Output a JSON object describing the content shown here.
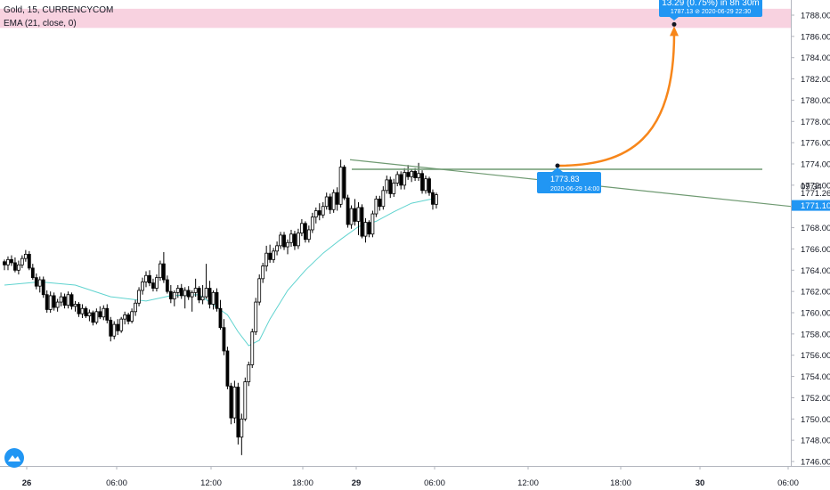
{
  "chart_data": {
    "type": "candlestick",
    "symbol_title": "Gold, 15, CURRENCYCOM",
    "indicator_label": "EMA (21, close, 0)",
    "x_ticks": [
      "26",
      "06:00",
      "12:00",
      "18:00",
      "29",
      "06:00",
      "12:00",
      "18:00",
      "30",
      "06:00"
    ],
    "y_ticks": [
      "1746.00",
      "1748.00",
      "1750.00",
      "1752.00",
      "1754.00",
      "1756.00",
      "1758.00",
      "1760.00",
      "1762.00",
      "1764.00",
      "1766.00",
      "1768.00",
      "1770.00",
      "1772.00",
      "1774.00",
      "1776.00",
      "1778.00",
      "1780.00",
      "1782.00",
      "1784.00",
      "1786.00",
      "1788.00"
    ],
    "ylim": [
      1745.0,
      1789.2
    ],
    "series": [
      {
        "name": "Gold",
        "candles": [
          [
            1764.8,
            1765.0,
            1764.0,
            1764.5
          ],
          [
            1764.5,
            1765.3,
            1764.0,
            1765.0
          ],
          [
            1765.0,
            1765.4,
            1764.4,
            1764.7
          ],
          [
            1764.7,
            1765.2,
            1763.8,
            1764.0
          ],
          [
            1764.0,
            1764.9,
            1763.6,
            1764.5
          ],
          [
            1764.5,
            1765.4,
            1764.2,
            1765.1
          ],
          [
            1765.1,
            1765.9,
            1764.8,
            1765.5
          ],
          [
            1765.5,
            1765.8,
            1764.0,
            1764.2
          ],
          [
            1764.2,
            1764.6,
            1763.1,
            1763.3
          ],
          [
            1763.3,
            1763.7,
            1762.2,
            1762.5
          ],
          [
            1762.5,
            1763.4,
            1761.9,
            1763.1
          ],
          [
            1763.1,
            1763.4,
            1761.4,
            1761.7
          ],
          [
            1761.7,
            1762.1,
            1760.0,
            1760.3
          ],
          [
            1760.3,
            1762.0,
            1760.0,
            1761.6
          ],
          [
            1761.6,
            1761.9,
            1760.2,
            1760.5
          ],
          [
            1760.5,
            1761.3,
            1760.1,
            1761.0
          ],
          [
            1761.0,
            1761.9,
            1760.6,
            1761.5
          ],
          [
            1761.5,
            1761.8,
            1760.4,
            1760.7
          ],
          [
            1760.7,
            1762.0,
            1760.4,
            1761.7
          ],
          [
            1761.7,
            1761.9,
            1760.3,
            1760.6
          ],
          [
            1760.6,
            1761.1,
            1760.1,
            1760.8
          ],
          [
            1760.8,
            1761.0,
            1759.6,
            1759.9
          ],
          [
            1759.9,
            1760.8,
            1759.5,
            1760.4
          ],
          [
            1760.4,
            1760.6,
            1759.5,
            1759.7
          ],
          [
            1759.7,
            1760.3,
            1759.2,
            1760.0
          ],
          [
            1760.0,
            1760.2,
            1758.8,
            1759.1
          ],
          [
            1759.1,
            1760.4,
            1758.9,
            1760.1
          ],
          [
            1760.1,
            1760.6,
            1759.4,
            1759.6
          ],
          [
            1759.6,
            1760.7,
            1759.3,
            1760.4
          ],
          [
            1760.4,
            1760.8,
            1759.0,
            1759.3
          ],
          [
            1759.3,
            1759.6,
            1757.3,
            1757.8
          ],
          [
            1757.8,
            1759.2,
            1757.5,
            1758.9
          ],
          [
            1758.9,
            1759.4,
            1757.9,
            1758.3
          ],
          [
            1758.3,
            1759.6,
            1758.1,
            1759.4
          ],
          [
            1759.4,
            1760.1,
            1758.9,
            1759.8
          ],
          [
            1759.8,
            1760.0,
            1758.9,
            1759.2
          ],
          [
            1759.2,
            1760.4,
            1759.0,
            1760.1
          ],
          [
            1760.1,
            1761.2,
            1759.7,
            1760.9
          ],
          [
            1760.9,
            1762.4,
            1760.6,
            1762.1
          ],
          [
            1762.1,
            1763.3,
            1761.7,
            1762.9
          ],
          [
            1762.9,
            1763.9,
            1762.4,
            1763.5
          ],
          [
            1763.5,
            1764.0,
            1762.5,
            1762.8
          ],
          [
            1762.8,
            1763.2,
            1762.0,
            1762.3
          ],
          [
            1762.3,
            1763.6,
            1762.0,
            1763.3
          ],
          [
            1763.3,
            1764.9,
            1763.0,
            1764.6
          ],
          [
            1764.6,
            1765.7,
            1762.8,
            1763.1
          ],
          [
            1763.1,
            1763.5,
            1761.8,
            1762.0
          ],
          [
            1762.0,
            1762.6,
            1760.9,
            1761.3
          ],
          [
            1761.3,
            1762.1,
            1760.6,
            1761.9
          ],
          [
            1761.9,
            1762.6,
            1761.4,
            1762.3
          ],
          [
            1762.3,
            1762.7,
            1761.3,
            1761.6
          ],
          [
            1761.6,
            1762.4,
            1760.4,
            1762.1
          ],
          [
            1762.1,
            1762.5,
            1761.2,
            1761.5
          ],
          [
            1761.5,
            1762.1,
            1760.1,
            1761.9
          ],
          [
            1761.9,
            1763.2,
            1761.5,
            1762.3
          ],
          [
            1762.3,
            1762.5,
            1760.9,
            1761.2
          ],
          [
            1761.2,
            1762.6,
            1760.8,
            1761.5
          ],
          [
            1761.5,
            1764.6,
            1761.3,
            1762.3
          ],
          [
            1762.3,
            1763.0,
            1760.4,
            1760.8
          ],
          [
            1760.8,
            1762.1,
            1760.3,
            1761.9
          ],
          [
            1761.9,
            1762.3,
            1760.1,
            1760.4
          ],
          [
            1760.4,
            1761.2,
            1758.4,
            1758.6
          ],
          [
            1758.6,
            1759.4,
            1756.0,
            1756.4
          ],
          [
            1756.4,
            1756.8,
            1752.8,
            1753.1
          ],
          [
            1753.1,
            1753.4,
            1749.5,
            1750.1
          ],
          [
            1750.1,
            1753.6,
            1749.6,
            1753.0
          ],
          [
            1753.0,
            1753.4,
            1747.6,
            1748.3
          ],
          [
            1748.3,
            1750.5,
            1746.6,
            1750.0
          ],
          [
            1750.0,
            1753.9,
            1749.8,
            1753.5
          ],
          [
            1753.5,
            1755.4,
            1753.1,
            1755.1
          ],
          [
            1755.1,
            1758.5,
            1754.8,
            1758.2
          ],
          [
            1758.2,
            1761.4,
            1757.9,
            1761.0
          ],
          [
            1761.0,
            1763.6,
            1760.7,
            1763.2
          ],
          [
            1763.2,
            1764.7,
            1762.8,
            1764.4
          ],
          [
            1764.4,
            1766.3,
            1763.9,
            1765.6
          ],
          [
            1765.6,
            1766.4,
            1764.7,
            1765.0
          ],
          [
            1765.0,
            1766.1,
            1764.7,
            1765.8
          ],
          [
            1765.8,
            1766.7,
            1765.4,
            1766.3
          ],
          [
            1766.3,
            1767.6,
            1766.0,
            1767.3
          ],
          [
            1767.3,
            1767.6,
            1765.9,
            1766.2
          ],
          [
            1766.2,
            1766.9,
            1765.5,
            1766.6
          ],
          [
            1766.6,
            1767.8,
            1766.2,
            1767.4
          ],
          [
            1767.4,
            1767.7,
            1765.9,
            1766.3
          ],
          [
            1766.3,
            1767.9,
            1766.0,
            1767.5
          ],
          [
            1767.5,
            1768.8,
            1767.2,
            1768.4
          ],
          [
            1768.4,
            1768.6,
            1766.6,
            1766.9
          ],
          [
            1766.9,
            1768.2,
            1766.6,
            1767.8
          ],
          [
            1767.8,
            1769.4,
            1767.5,
            1769.0
          ],
          [
            1769.0,
            1769.9,
            1768.4,
            1769.6
          ],
          [
            1769.6,
            1770.3,
            1768.7,
            1769.2
          ],
          [
            1769.2,
            1770.4,
            1768.9,
            1770.0
          ],
          [
            1770.0,
            1771.3,
            1769.7,
            1770.9
          ],
          [
            1770.9,
            1771.2,
            1769.3,
            1769.7
          ],
          [
            1769.7,
            1771.6,
            1769.4,
            1771.3
          ],
          [
            1771.3,
            1771.8,
            1769.6,
            1770.2
          ],
          [
            1770.2,
            1774.4,
            1769.9,
            1773.7
          ],
          [
            1773.7,
            1773.9,
            1770.6,
            1770.8
          ],
          [
            1770.8,
            1771.1,
            1768.0,
            1768.3
          ],
          [
            1768.3,
            1770.1,
            1767.9,
            1769.8
          ],
          [
            1769.8,
            1770.7,
            1768.2,
            1768.6
          ],
          [
            1768.6,
            1770.4,
            1767.3,
            1769.9
          ],
          [
            1769.9,
            1770.2,
            1767.0,
            1767.2
          ],
          [
            1767.2,
            1768.9,
            1766.6,
            1768.5
          ],
          [
            1768.5,
            1768.7,
            1767.1,
            1767.4
          ],
          [
            1767.4,
            1769.6,
            1767.1,
            1769.3
          ],
          [
            1769.3,
            1771.0,
            1769.0,
            1770.7
          ],
          [
            1770.7,
            1771.0,
            1769.6,
            1770.0
          ],
          [
            1770.0,
            1771.9,
            1769.7,
            1771.5
          ],
          [
            1771.5,
            1772.9,
            1771.2,
            1772.5
          ],
          [
            1772.5,
            1772.8,
            1770.8,
            1771.2
          ],
          [
            1771.2,
            1772.6,
            1770.9,
            1772.2
          ],
          [
            1772.2,
            1773.3,
            1771.9,
            1773.0
          ],
          [
            1773.0,
            1773.3,
            1771.6,
            1772.0
          ],
          [
            1772.0,
            1773.6,
            1771.6,
            1773.2
          ],
          [
            1773.2,
            1773.9,
            1772.5,
            1772.8
          ],
          [
            1772.8,
            1773.5,
            1772.3,
            1773.3
          ],
          [
            1773.3,
            1773.6,
            1772.4,
            1772.7
          ],
          [
            1772.7,
            1774.1,
            1772.4,
            1773.1
          ],
          [
            1773.1,
            1773.4,
            1771.2,
            1771.5
          ],
          [
            1771.5,
            1772.9,
            1771.2,
            1772.6
          ],
          [
            1772.6,
            1772.8,
            1771.0,
            1771.3
          ],
          [
            1771.3,
            1771.6,
            1769.7,
            1770.2
          ],
          [
            1770.2,
            1771.3,
            1769.8,
            1771.1
          ]
        ]
      },
      {
        "name": "EMA (21, close, 0)",
        "points": [
          [
            0,
            1762.6
          ],
          [
            10,
            1762.9
          ],
          [
            20,
            1762.6
          ],
          [
            30,
            1761.5
          ],
          [
            40,
            1761.1
          ],
          [
            47,
            1761.6
          ],
          [
            55,
            1761.7
          ],
          [
            63,
            1759.8
          ],
          [
            66,
            1758.2
          ],
          [
            69,
            1756.9
          ],
          [
            72,
            1757.4
          ],
          [
            75,
            1759.4
          ],
          [
            80,
            1762.1
          ],
          [
            85,
            1764.0
          ],
          [
            90,
            1765.6
          ],
          [
            95,
            1766.9
          ],
          [
            100,
            1768.1
          ],
          [
            105,
            1768.6
          ],
          [
            110,
            1769.5
          ],
          [
            115,
            1770.3
          ],
          [
            122,
            1770.8
          ]
        ]
      }
    ],
    "price_range_label": "13.29 (0.75%) in 8h 30m",
    "price_range_target": "1787.13 ⊘ 2020-06-29  22:30",
    "start_point_price": "1773.83",
    "start_point_time": "2020-06-29 14:00",
    "price_labels": {
      "trendline_value": "1771.26",
      "countdown": "09:34",
      "current_price": "1771.10"
    },
    "colors": {
      "bull": "#ffffff",
      "bear": "#000000",
      "candle_outline": "#000000",
      "ema": "#5fd3cf",
      "trendline": "#6f9a72",
      "arrow": "#f7861a",
      "zone": "#f8d2e0",
      "label_blue": "#2196f3",
      "axis_text": "#131722"
    }
  }
}
